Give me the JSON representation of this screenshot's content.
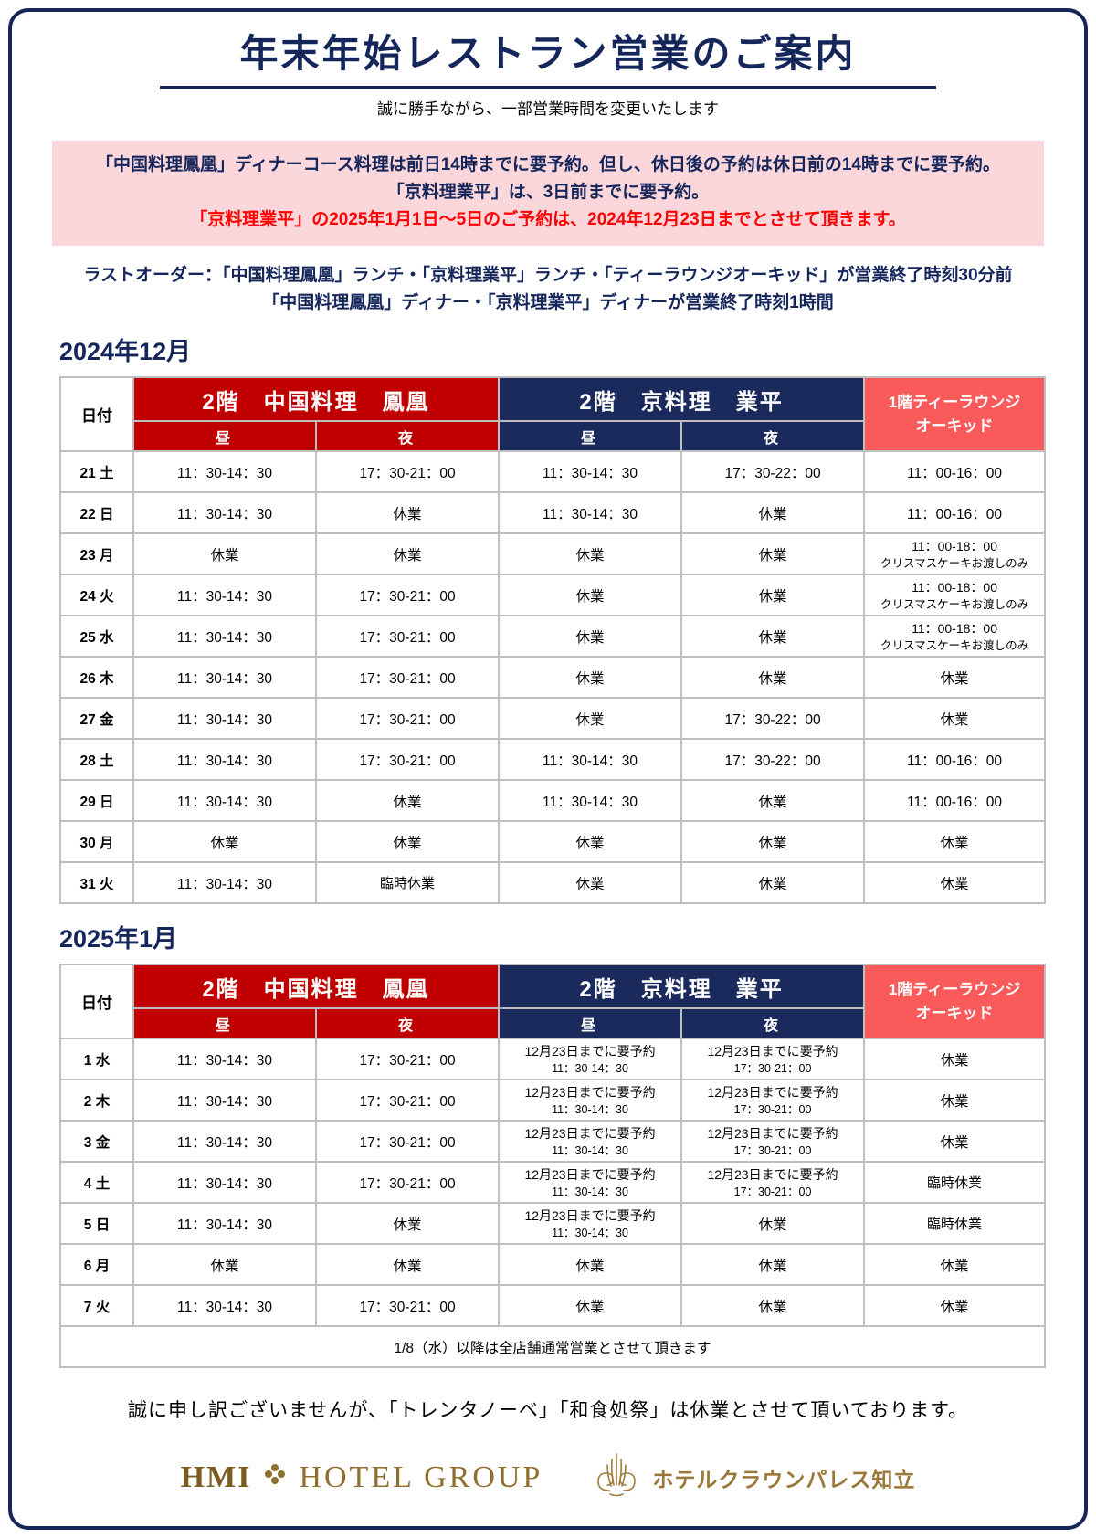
{
  "title": "年末年始レストラン営業のご案内",
  "subtitle": "誠に勝手ながら、一部営業時間を変更いたします",
  "notice": {
    "line1": "「中国料理鳳凰」ディナーコース料理は前日14時までに要予約。但し、休日後の予約は休日前の14時までに要予約。",
    "line2": "「京料理業平」は、3日前までに要予約。",
    "line3": "「京料理業平」の2025年1月1日～5日のご予約は、2024年12月23日までとさせて頂きます。"
  },
  "last_order": {
    "line1": "ラストオーダー：「中国料理鳳凰」ランチ・「京料理業平」ランチ・「ティーラウンジオーキッド」が営業終了時刻30分前",
    "line2": "「中国料理鳳凰」ディナー・「京料理業平」ディナーが営業終了時刻1時間"
  },
  "header": {
    "date_col": "日付",
    "restaurant_chinese": "2階　中国料理　鳳凰",
    "restaurant_kyoto": "2階　京料理　業平",
    "lounge_line1": "1階ティーラウンジ",
    "lounge_line2": "オーキッド",
    "lunch": "昼",
    "dinner": "夜"
  },
  "tables": [
    {
      "id": "december",
      "heading": "2024年12月",
      "footer_note": null,
      "rows": [
        {
          "date": "21 土",
          "day": "sat",
          "cells": [
            {
              "lines": [
                "11：30-14：30"
              ]
            },
            {
              "lines": [
                "17：30-21：00"
              ]
            },
            {
              "lines": [
                "11：30-14：30"
              ]
            },
            {
              "lines": [
                "17：30-22：00"
              ]
            },
            {
              "lines": [
                "11：00-16：00"
              ]
            }
          ]
        },
        {
          "date": "22 日",
          "day": "sun",
          "cells": [
            {
              "lines": [
                "11：30-14：30"
              ]
            },
            {
              "lines": [
                "休業"
              ]
            },
            {
              "lines": [
                "11：30-14：30"
              ]
            },
            {
              "lines": [
                "休業"
              ]
            },
            {
              "lines": [
                "11：00-16：00"
              ]
            }
          ]
        },
        {
          "date": "23 月",
          "day": "wk",
          "cells": [
            {
              "lines": [
                "休業"
              ]
            },
            {
              "lines": [
                "休業"
              ]
            },
            {
              "lines": [
                "休業"
              ]
            },
            {
              "lines": [
                "休業"
              ]
            },
            {
              "lines": [
                "11：00-18：00",
                "クリスマスケーキお渡しのみ"
              ],
              "pink": true
            }
          ]
        },
        {
          "date": "24 火",
          "day": "wk",
          "cells": [
            {
              "lines": [
                "11：30-14：30"
              ]
            },
            {
              "lines": [
                "17：30-21：00"
              ]
            },
            {
              "lines": [
                "休業"
              ]
            },
            {
              "lines": [
                "休業"
              ]
            },
            {
              "lines": [
                "11：00-18：00",
                "クリスマスケーキお渡しのみ"
              ],
              "pink": true
            }
          ]
        },
        {
          "date": "25 水",
          "day": "wk",
          "cells": [
            {
              "lines": [
                "11：30-14：30"
              ]
            },
            {
              "lines": [
                "17：30-21：00"
              ]
            },
            {
              "lines": [
                "休業"
              ]
            },
            {
              "lines": [
                "休業"
              ]
            },
            {
              "lines": [
                "11：00-18：00",
                "クリスマスケーキお渡しのみ"
              ],
              "pink": true
            }
          ]
        },
        {
          "date": "26 木",
          "day": "wk",
          "cells": [
            {
              "lines": [
                "11：30-14：30"
              ]
            },
            {
              "lines": [
                "17：30-21：00"
              ]
            },
            {
              "lines": [
                "休業"
              ]
            },
            {
              "lines": [
                "休業"
              ]
            },
            {
              "lines": [
                "休業"
              ]
            }
          ]
        },
        {
          "date": "27 金",
          "day": "wk",
          "cells": [
            {
              "lines": [
                "11：30-14：30"
              ]
            },
            {
              "lines": [
                "17：30-21：00"
              ]
            },
            {
              "lines": [
                "休業"
              ]
            },
            {
              "lines": [
                "17：30-22：00"
              ]
            },
            {
              "lines": [
                "休業"
              ]
            }
          ]
        },
        {
          "date": "28 土",
          "day": "sat",
          "cells": [
            {
              "lines": [
                "11：30-14：30"
              ]
            },
            {
              "lines": [
                "17：30-21：00"
              ]
            },
            {
              "lines": [
                "11：30-14：30"
              ]
            },
            {
              "lines": [
                "17：30-22：00"
              ]
            },
            {
              "lines": [
                "11：00-16：00"
              ]
            }
          ]
        },
        {
          "date": "29 日",
          "day": "sun",
          "cells": [
            {
              "lines": [
                "11：30-14：30"
              ]
            },
            {
              "lines": [
                "休業"
              ]
            },
            {
              "lines": [
                "11：30-14：30"
              ]
            },
            {
              "lines": [
                "休業"
              ]
            },
            {
              "lines": [
                "11：00-16：00"
              ]
            }
          ]
        },
        {
          "date": "30 月",
          "day": "wk",
          "cells": [
            {
              "lines": [
                "休業"
              ]
            },
            {
              "lines": [
                "休業"
              ]
            },
            {
              "lines": [
                "休業"
              ]
            },
            {
              "lines": [
                "休業"
              ]
            },
            {
              "lines": [
                "休業"
              ]
            }
          ]
        },
        {
          "date": "31 火",
          "day": "wk",
          "cells": [
            {
              "lines": [
                "11：30-14：30"
              ]
            },
            {
              "lines": [
                "臨時休業"
              ],
              "pink": true
            },
            {
              "lines": [
                "休業"
              ]
            },
            {
              "lines": [
                "休業"
              ]
            },
            {
              "lines": [
                "休業"
              ]
            }
          ]
        }
      ]
    },
    {
      "id": "january",
      "heading": "2025年1月",
      "footer_note": "1/8（水）以降は全店舗通常営業とさせて頂きます",
      "rows": [
        {
          "date": "1 水",
          "day": "wk",
          "cells": [
            {
              "lines": [
                "11：30-14：30"
              ]
            },
            {
              "lines": [
                "17：30-21：00"
              ]
            },
            {
              "lines": [
                "12月23日までに要予約",
                "11：30-14：30"
              ],
              "pink": true
            },
            {
              "lines": [
                "12月23日までに要予約",
                "17：30-21：00"
              ],
              "pink": true
            },
            {
              "lines": [
                "休業"
              ]
            }
          ]
        },
        {
          "date": "2 木",
          "day": "wk",
          "cells": [
            {
              "lines": [
                "11：30-14：30"
              ]
            },
            {
              "lines": [
                "17：30-21：00"
              ]
            },
            {
              "lines": [
                "12月23日までに要予約",
                "11：30-14：30"
              ],
              "pink": true
            },
            {
              "lines": [
                "12月23日までに要予約",
                "17：30-21：00"
              ],
              "pink": true
            },
            {
              "lines": [
                "休業"
              ]
            }
          ]
        },
        {
          "date": "3 金",
          "day": "wk",
          "cells": [
            {
              "lines": [
                "11：30-14：30"
              ]
            },
            {
              "lines": [
                "17：30-21：00"
              ]
            },
            {
              "lines": [
                "12月23日までに要予約",
                "11：30-14：30"
              ],
              "pink": true
            },
            {
              "lines": [
                "12月23日までに要予約",
                "17：30-21：00"
              ],
              "pink": true
            },
            {
              "lines": [
                "休業"
              ]
            }
          ]
        },
        {
          "date": "4 土",
          "day": "sat",
          "cells": [
            {
              "lines": [
                "11：30-14：30"
              ]
            },
            {
              "lines": [
                "17：30-21：00"
              ]
            },
            {
              "lines": [
                "12月23日までに要予約",
                "11：30-14：30"
              ],
              "pink": true
            },
            {
              "lines": [
                "12月23日までに要予約",
                "17：30-21：00"
              ],
              "pink": true
            },
            {
              "lines": [
                "臨時休業"
              ],
              "pink": true
            }
          ]
        },
        {
          "date": "5 日",
          "day": "sun",
          "cells": [
            {
              "lines": [
                "11：30-14：30"
              ]
            },
            {
              "lines": [
                "休業"
              ]
            },
            {
              "lines": [
                "12月23日までに要予約",
                "11：30-14：30"
              ],
              "pink": true
            },
            {
              "lines": [
                "休業"
              ]
            },
            {
              "lines": [
                "臨時休業"
              ],
              "pink": true
            }
          ]
        },
        {
          "date": "6 月",
          "day": "wk",
          "cells": [
            {
              "lines": [
                "休業"
              ]
            },
            {
              "lines": [
                "休業"
              ]
            },
            {
              "lines": [
                "休業"
              ]
            },
            {
              "lines": [
                "休業"
              ]
            },
            {
              "lines": [
                "休業"
              ]
            }
          ]
        },
        {
          "date": "7 火",
          "day": "wk",
          "cells": [
            {
              "lines": [
                "11：30-14：30"
              ]
            },
            {
              "lines": [
                "17：30-21：00"
              ]
            },
            {
              "lines": [
                "休業"
              ]
            },
            {
              "lines": [
                "休業"
              ]
            },
            {
              "lines": [
                "休業"
              ]
            }
          ]
        }
      ]
    }
  ],
  "closure_note": "誠に申し訳ございませんが、「トレンタノーベ」「和食処祭」は休業とさせて頂いております。",
  "logos": {
    "hmi_word": "HMI",
    "hotel_group_word": "HOTEL GROUP",
    "hotel_name": "ホテルクラウンパレス知立"
  },
  "colors": {
    "navy": "#15265B",
    "header_red": "#C00000",
    "header_navy": "#1B2A5C",
    "header_salmon": "#FB5A5A",
    "pink_bg": "#FBD7D7",
    "alert_red": "#FF0000",
    "saturday_blue": "#3B6FDC",
    "sunday_red": "#FF0000",
    "gold": "#9A7839",
    "grid_gray": "#BFBFBF"
  }
}
